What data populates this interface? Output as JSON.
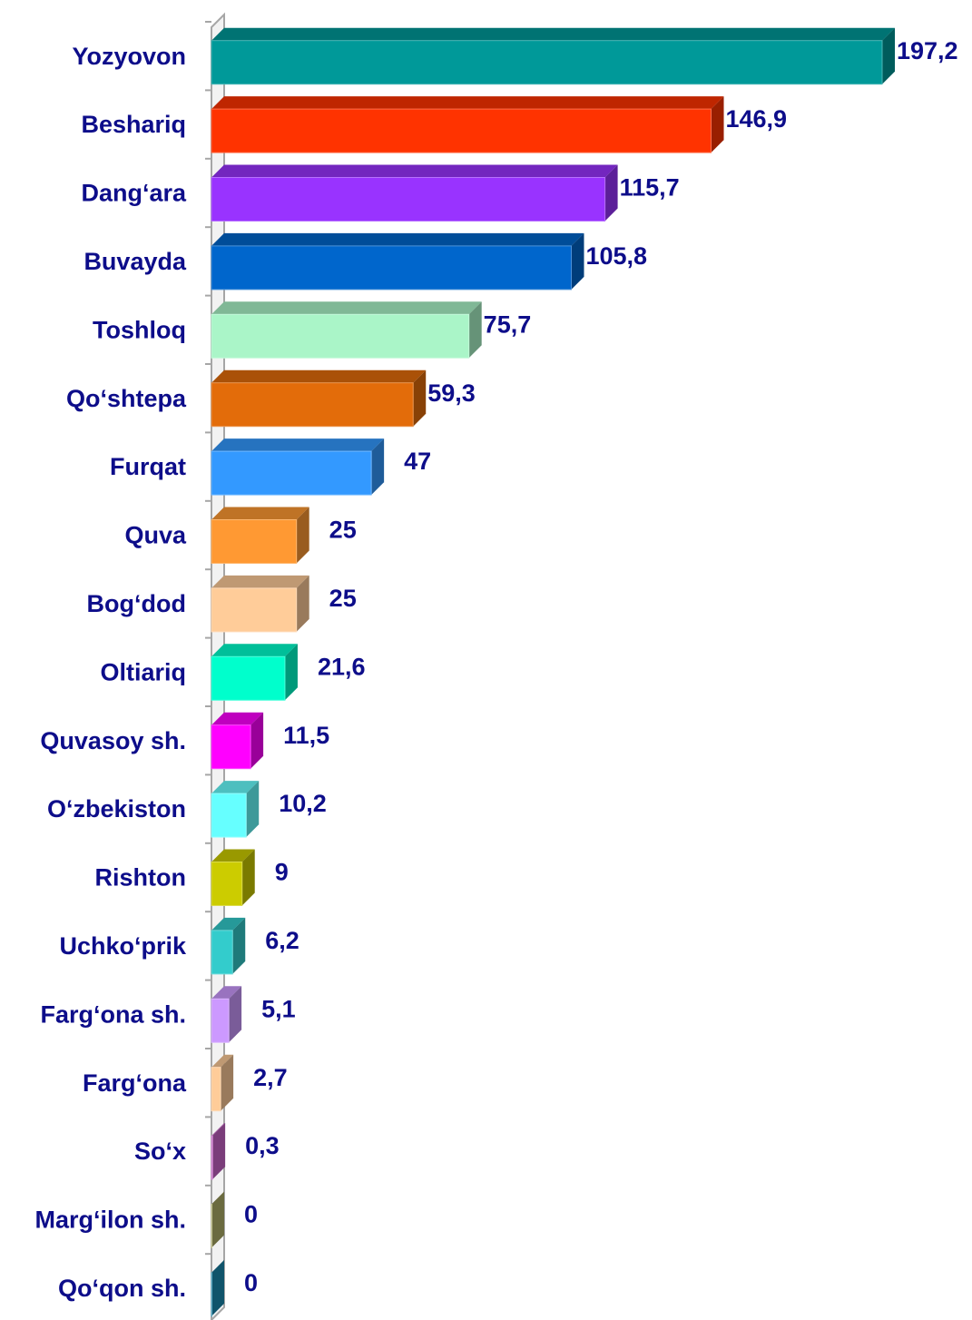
{
  "chart_data": {
    "type": "bar",
    "orientation": "horizontal",
    "categories": [
      "Yozyovon",
      "Beshariq",
      "Dang‘ara",
      "Buvayda",
      "Toshloq",
      "Qo‘shtepa",
      "Furqat",
      "Quva",
      "Bog‘dod",
      "Oltiariq",
      "Quvasoy sh.",
      "O‘zbekiston",
      "Rishton",
      "Uchko‘prik",
      "Farg‘ona sh.",
      "Farg‘ona",
      "So‘x",
      "Marg‘ilon sh.",
      "Qo‘qon sh."
    ],
    "values": [
      197.2,
      146.9,
      115.7,
      105.8,
      75.7,
      59.3,
      47,
      25,
      25,
      21.6,
      11.5,
      10.2,
      9,
      6.2,
      5.1,
      2.7,
      0.3,
      0,
      0
    ],
    "value_labels": [
      "197,2",
      "146,9",
      "115,7",
      "105,8",
      "75,7",
      "59,3",
      "47",
      "25",
      "25",
      "21,6",
      "11,5",
      "10,2",
      "9",
      "6,2",
      "5,1",
      "2,7",
      "0,3",
      "0",
      "0"
    ],
    "colors": [
      "#009999",
      "#ff3300",
      "#9933ff",
      "#0066cc",
      "#aaf5c8",
      "#e36c0a",
      "#3399ff",
      "#ff9933",
      "#ffcc99",
      "#00ffcc",
      "#ff00ff",
      "#66ffff",
      "#cccc00",
      "#33cccc",
      "#cc99ff",
      "#ffcc99",
      "#cc66cc",
      "#b3b36b",
      "#1a8cb3"
    ]
  }
}
